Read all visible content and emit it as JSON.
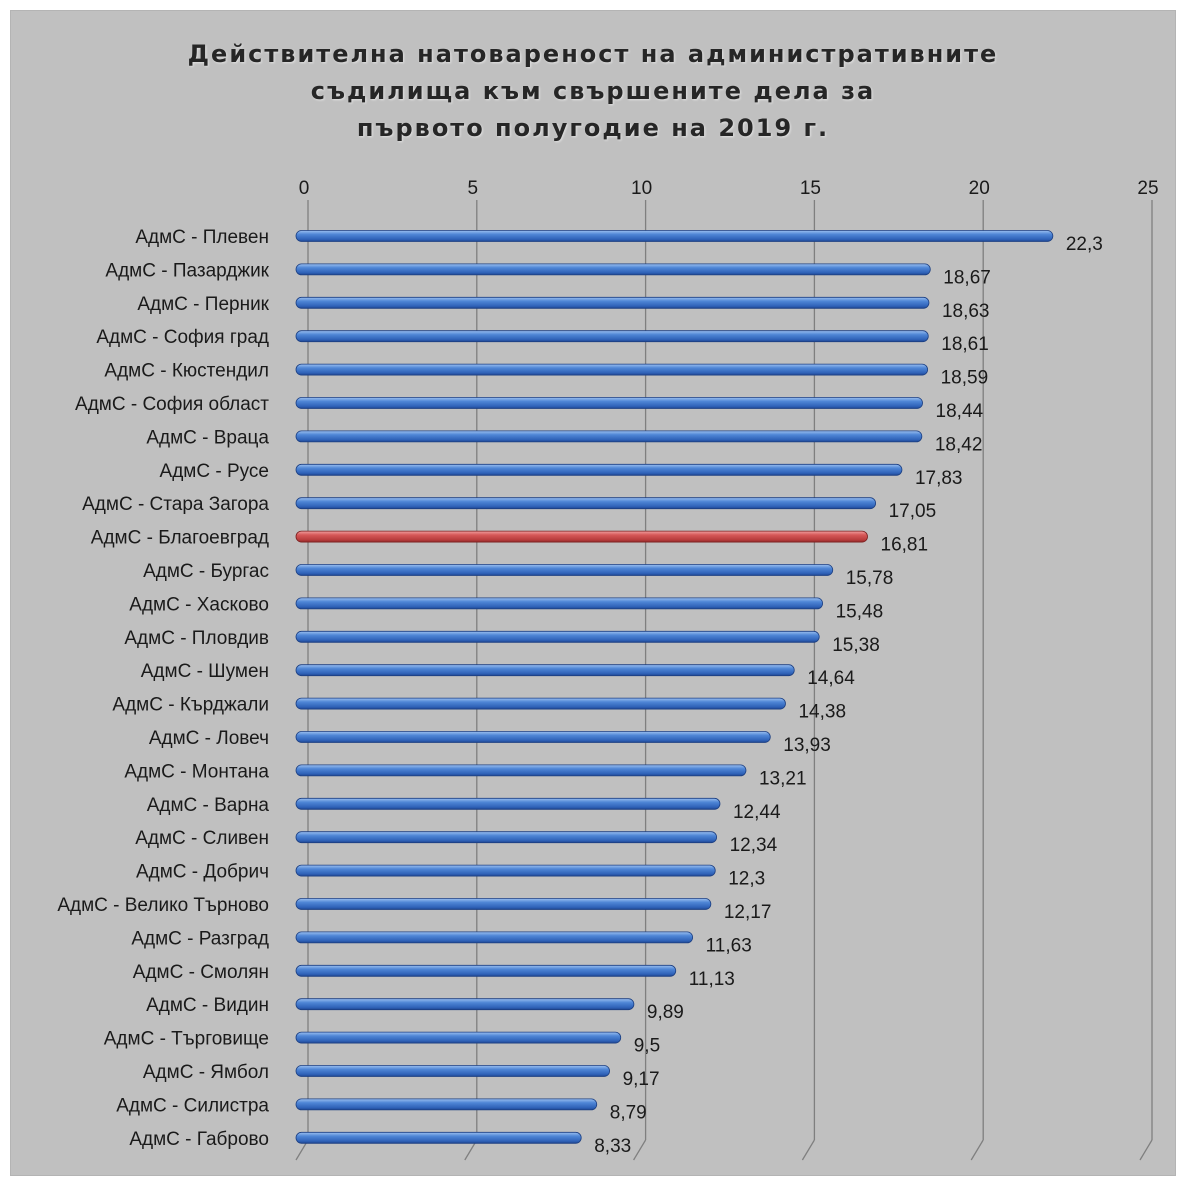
{
  "chart_data": {
    "type": "bar",
    "orientation": "horizontal",
    "title_lines": [
      "Действителна натовареност на административните",
      "съдилища към свършените дела за",
      "първото полугодие на 2019 г."
    ],
    "xlabel": "",
    "ylabel": "",
    "xlim": [
      0,
      25
    ],
    "x_ticks": [
      0,
      5,
      10,
      15,
      20,
      25
    ],
    "x_axis_position": "top",
    "grid": "vertical",
    "legend": "none",
    "categories": [
      "АдмС - Плевен",
      "АдмС - Пазарджик",
      "АдмС - Перник",
      "АдмС - София град",
      "АдмС - Кюстендил",
      "АдмС - София област",
      "АдмС - Враца",
      "АдмС - Русе",
      "АдмС - Стара Загора",
      "АдмС - Благоевград",
      "АдмС - Бургас",
      "АдмС - Хасково",
      "АдмС - Пловдив",
      "АдмС - Шумен",
      "АдмС - Кърджали",
      "АдмС - Ловеч",
      "АдмС - Монтана",
      "АдмС - Варна",
      "АдмС - Сливен",
      "АдмС - Добрич",
      "АдмС - Велико Търново",
      "АдмС - Разград",
      "АдмС - Смолян",
      "АдмС - Видин",
      "АдмС - Търговище",
      "АдмС - Ямбол",
      "АдмС - Силистра",
      "АдмС - Габрово"
    ],
    "values": [
      22.3,
      18.67,
      18.63,
      18.61,
      18.59,
      18.44,
      18.42,
      17.83,
      17.05,
      16.81,
      15.78,
      15.48,
      15.38,
      14.64,
      14.38,
      13.93,
      13.21,
      12.44,
      12.34,
      12.3,
      12.17,
      11.63,
      11.13,
      9.89,
      9.5,
      9.17,
      8.79,
      8.33
    ],
    "value_labels": [
      "22,3",
      "18,67",
      "18,63",
      "18,61",
      "18,59",
      "18,44",
      "18,42",
      "17,83",
      "17,05",
      "16,81",
      "15,78",
      "15,48",
      "15,38",
      "14,64",
      "14,38",
      "13,93",
      "13,21",
      "12,44",
      "12,34",
      "12,3",
      "12,17",
      "11,63",
      "11,13",
      "9,89",
      "9,5",
      "9,17",
      "8,79",
      "8,33"
    ],
    "highlight_category": "АдмС - Благоевград",
    "colors": {
      "background": "#c0c0c0",
      "bar": "#3a6fc4",
      "bar_highlight": "#c94a4a",
      "grid": "#7f7f7f",
      "text": "#1a1a1a"
    }
  }
}
